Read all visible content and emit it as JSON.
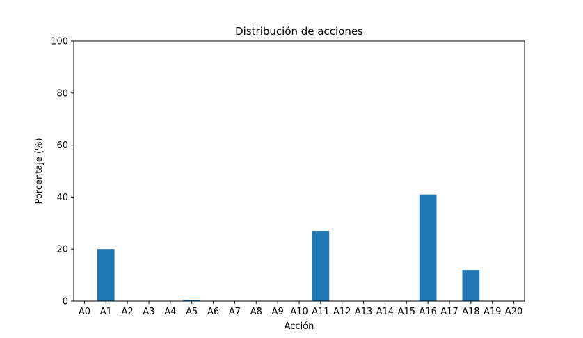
{
  "chart_data": {
    "type": "bar",
    "title": "Distribución de acciones",
    "xlabel": "Acción",
    "ylabel": "Porcentaje (%)",
    "categories": [
      "A0",
      "A1",
      "A2",
      "A3",
      "A4",
      "A5",
      "A6",
      "A7",
      "A8",
      "A9",
      "A10",
      "A11",
      "A12",
      "A13",
      "A14",
      "A15",
      "A16",
      "A17",
      "A18",
      "A19",
      "A20"
    ],
    "values": [
      0,
      20,
      0,
      0,
      0,
      0.5,
      0,
      0,
      0,
      0,
      0,
      27,
      0,
      0,
      0,
      0,
      41,
      0,
      12,
      0,
      0
    ],
    "ylim": [
      0,
      100
    ],
    "yticks": [
      "0",
      "20",
      "40",
      "60",
      "80",
      "100"
    ],
    "bar_color": "#1f77b4",
    "grid": false,
    "legend": "none"
  }
}
